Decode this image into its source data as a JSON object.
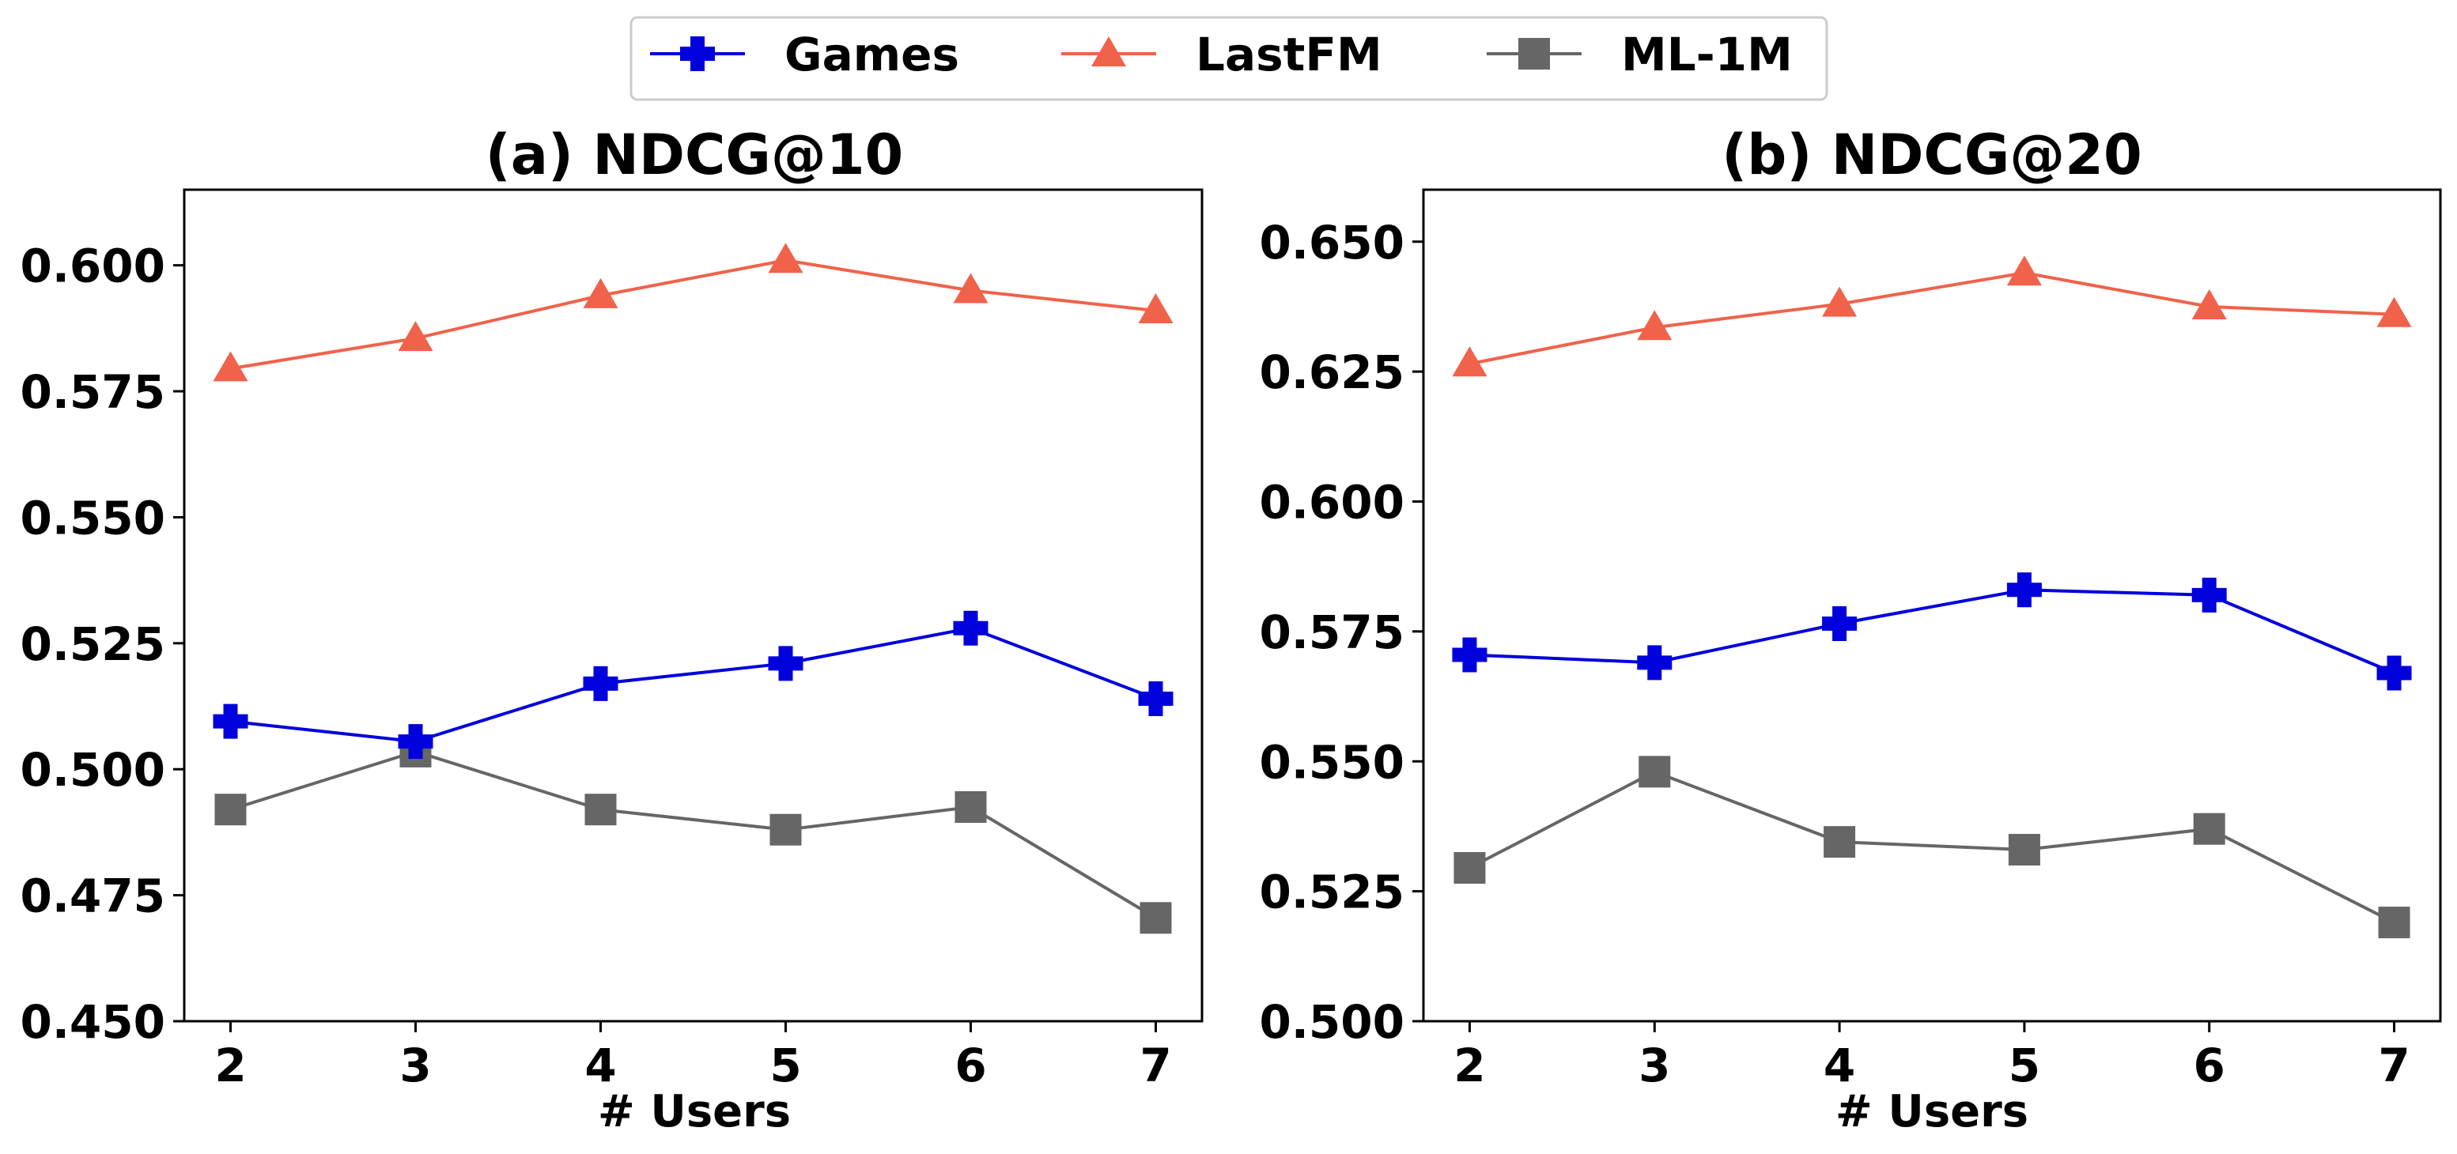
{
  "legend": {
    "items": [
      {
        "name": "Games",
        "color": "#0000dd",
        "marker": "plus"
      },
      {
        "name": "LastFM",
        "color": "#f0624a",
        "marker": "triangle"
      },
      {
        "name": "ML-1M",
        "color": "#666666",
        "marker": "square"
      }
    ]
  },
  "chart_data": [
    {
      "type": "line",
      "title": "(a) NDCG@10",
      "xlabel": "# Users",
      "ylabel": "",
      "x": [
        2,
        3,
        4,
        5,
        6,
        7
      ],
      "xticks": [
        "2",
        "3",
        "4",
        "5",
        "6",
        "7"
      ],
      "xlim": [
        1.75,
        7.25
      ],
      "ylim": [
        0.45,
        0.615
      ],
      "yticks": [
        "0.450",
        "0.475",
        "0.500",
        "0.525",
        "0.550",
        "0.575",
        "0.600"
      ],
      "grid": false,
      "legend": "top-center",
      "series": [
        {
          "name": "Games",
          "values": [
            0.5095,
            0.5055,
            0.517,
            0.521,
            0.528,
            0.514
          ]
        },
        {
          "name": "LastFM",
          "values": [
            0.5795,
            0.5855,
            0.594,
            0.601,
            0.595,
            0.591
          ]
        },
        {
          "name": "ML-1M",
          "values": [
            0.492,
            0.5035,
            0.492,
            0.488,
            0.4925,
            0.4705
          ]
        }
      ]
    },
    {
      "type": "line",
      "title": "(b) NDCG@20",
      "xlabel": "# Users",
      "ylabel": "",
      "x": [
        2,
        3,
        4,
        5,
        6,
        7
      ],
      "xticks": [
        "2",
        "3",
        "4",
        "5",
        "6",
        "7"
      ],
      "xlim": [
        1.75,
        7.25
      ],
      "ylim": [
        0.5,
        0.66
      ],
      "yticks": [
        "0.500",
        "0.525",
        "0.550",
        "0.575",
        "0.600",
        "0.625",
        "0.650"
      ],
      "grid": false,
      "legend": "top-center",
      "series": [
        {
          "name": "Games",
          "values": [
            0.5705,
            0.569,
            0.5765,
            0.583,
            0.582,
            0.567
          ]
        },
        {
          "name": "LastFM",
          "values": [
            0.6265,
            0.6335,
            0.638,
            0.644,
            0.6375,
            0.636
          ]
        },
        {
          "name": "ML-1M",
          "values": [
            0.5295,
            0.548,
            0.5345,
            0.533,
            0.537,
            0.519
          ]
        }
      ]
    }
  ]
}
